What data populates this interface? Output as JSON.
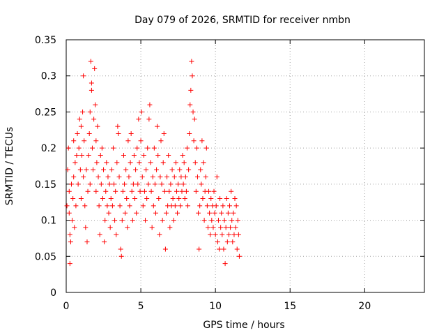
{
  "chart_data": {
    "type": "scatter",
    "title": "Day 079 of 2026, SRMTID for receiver nmbn",
    "xlabel": "GPS time / hours",
    "ylabel": "SRMTID / TECUs",
    "xlim": [
      0,
      24
    ],
    "ylim": [
      0,
      0.35
    ],
    "xticks": [
      0,
      5,
      10,
      15,
      20
    ],
    "xtick_labels": [
      "0",
      "5",
      "10",
      "15",
      "20"
    ],
    "yticks": [
      0,
      0.05,
      0.1,
      0.15,
      0.2,
      0.25,
      0.3,
      0.35
    ],
    "ytick_labels": [
      "0",
      "0.05",
      "0.1",
      "0.15",
      "0.2",
      "0.25",
      "0.3",
      "0.35"
    ],
    "grid": true,
    "marker": "+",
    "colors": {
      "points": "#ff0000",
      "grid": "#a0a0a0",
      "axes": "#000000"
    },
    "series": [
      {
        "name": "SRMTID",
        "points": [
          [
            0.05,
            0.12
          ],
          [
            0.1,
            0.17
          ],
          [
            0.15,
            0.2
          ],
          [
            0.2,
            0.14
          ],
          [
            0.2,
            0.11
          ],
          [
            0.25,
            0.08
          ],
          [
            0.25,
            0.04
          ],
          [
            0.3,
            0.07
          ],
          [
            0.35,
            0.15
          ],
          [
            0.4,
            0.1
          ],
          [
            0.45,
            0.13
          ],
          [
            0.5,
            0.21
          ],
          [
            0.5,
            0.16
          ],
          [
            0.55,
            0.09
          ],
          [
            0.6,
            0.18
          ],
          [
            0.65,
            0.12
          ],
          [
            0.7,
            0.19
          ],
          [
            0.75,
            0.22
          ],
          [
            0.8,
            0.15
          ],
          [
            0.85,
            0.2
          ],
          [
            0.9,
            0.24
          ],
          [
            0.95,
            0.17
          ],
          [
            1.0,
            0.13
          ],
          [
            1.0,
            0.23
          ],
          [
            1.05,
            0.19
          ],
          [
            1.1,
            0.25
          ],
          [
            1.15,
            0.3
          ],
          [
            1.15,
            0.16
          ],
          [
            1.2,
            0.21
          ],
          [
            1.25,
            0.12
          ],
          [
            1.3,
            0.09
          ],
          [
            1.35,
            0.17
          ],
          [
            1.4,
            0.07
          ],
          [
            1.45,
            0.14
          ],
          [
            1.5,
            0.19
          ],
          [
            1.55,
            0.22
          ],
          [
            1.6,
            0.25
          ],
          [
            1.6,
            0.15
          ],
          [
            1.65,
            0.32
          ],
          [
            1.7,
            0.29
          ],
          [
            1.7,
            0.28
          ],
          [
            1.75,
            0.2
          ],
          [
            1.8,
            0.17
          ],
          [
            1.85,
            0.24
          ],
          [
            1.9,
            0.31
          ],
          [
            1.95,
            0.26
          ],
          [
            2.0,
            0.21
          ],
          [
            2.0,
            0.14
          ],
          [
            2.05,
            0.18
          ],
          [
            2.1,
            0.23
          ],
          [
            2.15,
            0.16
          ],
          [
            2.2,
            0.12
          ],
          [
            2.25,
            0.08
          ],
          [
            2.3,
            0.19
          ],
          [
            2.35,
            0.15
          ],
          [
            2.4,
            0.2
          ],
          [
            2.45,
            0.13
          ],
          [
            2.5,
            0.17
          ],
          [
            2.55,
            0.07
          ],
          [
            2.6,
            0.1
          ],
          [
            2.65,
            0.14
          ],
          [
            2.7,
            0.18
          ],
          [
            2.75,
            0.12
          ],
          [
            2.8,
            0.16
          ],
          [
            2.85,
            0.11
          ],
          [
            2.9,
            0.15
          ],
          [
            2.95,
            0.09
          ],
          [
            3.0,
            0.13
          ],
          [
            3.05,
            0.17
          ],
          [
            3.1,
            0.12
          ],
          [
            3.15,
            0.2
          ],
          [
            3.2,
            0.15
          ],
          [
            3.25,
            0.1
          ],
          [
            3.3,
            0.14
          ],
          [
            3.35,
            0.08
          ],
          [
            3.4,
            0.18
          ],
          [
            3.45,
            0.23
          ],
          [
            3.5,
            0.22
          ],
          [
            3.55,
            0.16
          ],
          [
            3.6,
            0.12
          ],
          [
            3.65,
            0.06
          ],
          [
            3.7,
            0.05
          ],
          [
            3.75,
            0.1
          ],
          [
            3.8,
            0.14
          ],
          [
            3.85,
            0.19
          ],
          [
            3.9,
            0.15
          ],
          [
            3.95,
            0.11
          ],
          [
            4.0,
            0.17
          ],
          [
            4.05,
            0.13
          ],
          [
            4.1,
            0.09
          ],
          [
            4.15,
            0.21
          ],
          [
            4.2,
            0.16
          ],
          [
            4.25,
            0.12
          ],
          [
            4.3,
            0.18
          ],
          [
            4.35,
            0.22
          ],
          [
            4.4,
            0.14
          ],
          [
            4.45,
            0.1
          ],
          [
            4.5,
            0.15
          ],
          [
            4.55,
            0.19
          ],
          [
            4.6,
            0.13
          ],
          [
            4.65,
            0.17
          ],
          [
            4.7,
            0.11
          ],
          [
            4.75,
            0.2
          ],
          [
            4.8,
            0.15
          ],
          [
            4.85,
            0.24
          ],
          [
            4.9,
            0.18
          ],
          [
            4.95,
            0.14
          ],
          [
            5.0,
            0.21
          ],
          [
            5.05,
            0.25
          ],
          [
            5.1,
            0.16
          ],
          [
            5.15,
            0.12
          ],
          [
            5.2,
            0.19
          ],
          [
            5.25,
            0.14
          ],
          [
            5.3,
            0.1
          ],
          [
            5.35,
            0.17
          ],
          [
            5.4,
            0.13
          ],
          [
            5.45,
            0.2
          ],
          [
            5.5,
            0.15
          ],
          [
            5.55,
            0.24
          ],
          [
            5.6,
            0.26
          ],
          [
            5.65,
            0.18
          ],
          [
            5.7,
            0.14
          ],
          [
            5.75,
            0.09
          ],
          [
            5.8,
            0.16
          ],
          [
            5.85,
            0.12
          ],
          [
            5.9,
            0.2
          ],
          [
            5.95,
            0.15
          ],
          [
            6.0,
            0.11
          ],
          [
            6.05,
            0.17
          ],
          [
            6.1,
            0.23
          ],
          [
            6.15,
            0.19
          ],
          [
            6.2,
            0.13
          ],
          [
            6.25,
            0.08
          ],
          [
            6.3,
            0.16
          ],
          [
            6.35,
            0.21
          ],
          [
            6.4,
            0.15
          ],
          [
            6.45,
            0.1
          ],
          [
            6.5,
            0.18
          ],
          [
            6.55,
            0.22
          ],
          [
            6.6,
            0.14
          ],
          [
            6.65,
            0.06
          ],
          [
            6.7,
            0.11
          ],
          [
            6.75,
            0.16
          ],
          [
            6.8,
            0.12
          ],
          [
            6.85,
            0.19
          ],
          [
            6.9,
            0.14
          ],
          [
            6.95,
            0.09
          ],
          [
            7.0,
            0.15
          ],
          [
            7.05,
            0.12
          ],
          [
            7.1,
            0.17
          ],
          [
            7.15,
            0.13
          ],
          [
            7.2,
            0.1
          ],
          [
            7.25,
            0.16
          ],
          [
            7.3,
            0.12
          ],
          [
            7.35,
            0.18
          ],
          [
            7.4,
            0.14
          ],
          [
            7.45,
            0.11
          ],
          [
            7.5,
            0.15
          ],
          [
            7.55,
            0.13
          ],
          [
            7.6,
            0.17
          ],
          [
            7.65,
            0.12
          ],
          [
            7.7,
            0.16
          ],
          [
            7.75,
            0.14
          ],
          [
            7.8,
            0.19
          ],
          [
            7.85,
            0.15
          ],
          [
            7.9,
            0.18
          ],
          [
            7.95,
            0.13
          ],
          [
            8.0,
            0.16
          ],
          [
            8.05,
            0.14
          ],
          [
            8.1,
            0.2
          ],
          [
            8.15,
            0.12
          ],
          [
            8.2,
            0.17
          ],
          [
            8.25,
            0.22
          ],
          [
            8.3,
            0.26
          ],
          [
            8.35,
            0.28
          ],
          [
            8.4,
            0.32
          ],
          [
            8.45,
            0.3
          ],
          [
            8.5,
            0.25
          ],
          [
            8.55,
            0.21
          ],
          [
            8.6,
            0.24
          ],
          [
            8.65,
            0.18
          ],
          [
            8.7,
            0.14
          ],
          [
            8.75,
            0.2
          ],
          [
            8.8,
            0.16
          ],
          [
            8.85,
            0.11
          ],
          [
            8.9,
            0.06
          ],
          [
            8.95,
            0.12
          ],
          [
            9.0,
            0.17
          ],
          [
            9.05,
            0.15
          ],
          [
            9.1,
            0.21
          ],
          [
            9.15,
            0.13
          ],
          [
            9.2,
            0.18
          ],
          [
            9.25,
            0.1
          ],
          [
            9.3,
            0.14
          ],
          [
            9.35,
            0.16
          ],
          [
            9.4,
            0.2
          ],
          [
            9.45,
            0.12
          ],
          [
            9.5,
            0.09
          ],
          [
            9.55,
            0.14
          ],
          [
            9.6,
            0.11
          ],
          [
            9.65,
            0.08
          ],
          [
            9.7,
            0.13
          ],
          [
            9.75,
            0.1
          ],
          [
            9.8,
            0.12
          ],
          [
            9.85,
            0.09
          ],
          [
            9.9,
            0.14
          ],
          [
            9.95,
            0.11
          ],
          [
            10.0,
            0.08
          ],
          [
            10.05,
            0.12
          ],
          [
            10.1,
            0.16
          ],
          [
            10.15,
            0.07
          ],
          [
            10.2,
            0.1
          ],
          [
            10.25,
            0.06
          ],
          [
            10.3,
            0.13
          ],
          [
            10.35,
            0.09
          ],
          [
            10.4,
            0.11
          ],
          [
            10.45,
            0.08
          ],
          [
            10.5,
            0.12
          ],
          [
            10.55,
            0.06
          ],
          [
            10.6,
            0.1
          ],
          [
            10.65,
            0.04
          ],
          [
            10.7,
            0.09
          ],
          [
            10.75,
            0.13
          ],
          [
            10.8,
            0.07
          ],
          [
            10.85,
            0.11
          ],
          [
            10.9,
            0.08
          ],
          [
            10.95,
            0.12
          ],
          [
            11.0,
            0.09
          ],
          [
            11.05,
            0.14
          ],
          [
            11.1,
            0.1
          ],
          [
            11.15,
            0.07
          ],
          [
            11.2,
            0.11
          ],
          [
            11.25,
            0.08
          ],
          [
            11.3,
            0.13
          ],
          [
            11.35,
            0.09
          ],
          [
            11.4,
            0.12
          ],
          [
            11.45,
            0.06
          ],
          [
            11.5,
            0.1
          ],
          [
            11.55,
            0.08
          ],
          [
            11.6,
            0.05
          ]
        ]
      }
    ]
  }
}
